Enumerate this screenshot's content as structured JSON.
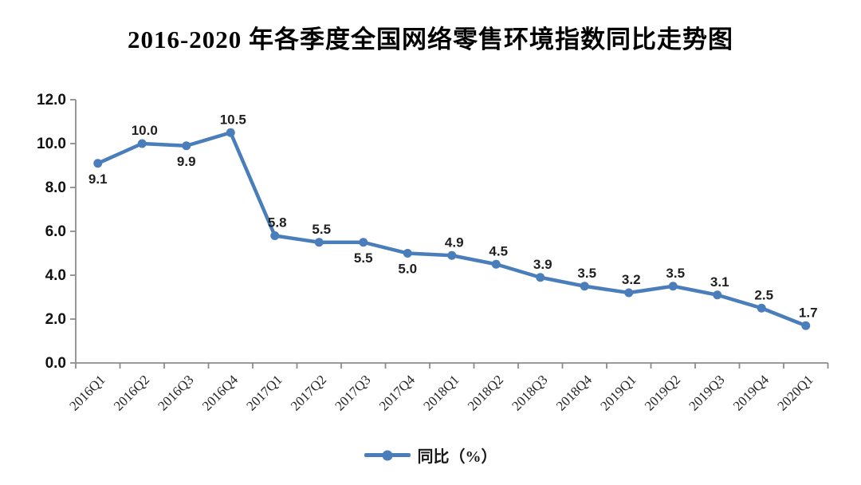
{
  "chart_data": {
    "type": "line",
    "title": "2016-2020 年各季度全国网络零售环境指数同比走势图",
    "categories": [
      "2016Q1",
      "2016Q2",
      "2016Q3",
      "2016Q4",
      "2017Q1",
      "2017Q2",
      "2017Q3",
      "2017Q4",
      "2018Q1",
      "2018Q2",
      "2018Q3",
      "2018Q4",
      "2019Q1",
      "2019Q2",
      "2019Q3",
      "2019Q4",
      "2020Q1"
    ],
    "series": [
      {
        "name": "同比（%）",
        "values": [
          9.1,
          10.0,
          9.9,
          10.5,
          5.8,
          5.5,
          5.5,
          5.0,
          4.9,
          4.5,
          3.9,
          3.5,
          3.2,
          3.5,
          3.1,
          2.5,
          1.7
        ]
      }
    ],
    "data_label_positions": [
      "below",
      "above",
      "below",
      "above",
      "above",
      "above",
      "below",
      "below",
      "above",
      "above",
      "above",
      "above",
      "above",
      "above",
      "above",
      "above",
      "above"
    ],
    "xlabel": "",
    "ylabel": "",
    "ylim": [
      0,
      12
    ],
    "ytick_step": 2,
    "ytick_labels": [
      "0.0",
      "2.0",
      "4.0",
      "6.0",
      "8.0",
      "10.0",
      "12.0"
    ],
    "value_decimals": 1,
    "grid": false,
    "legend_position": "bottom",
    "x_label_rotation": -45,
    "colors": {
      "series": "#4a7ebb",
      "axis": "#8c8c8c",
      "data_label": "#1f1f1f"
    }
  }
}
